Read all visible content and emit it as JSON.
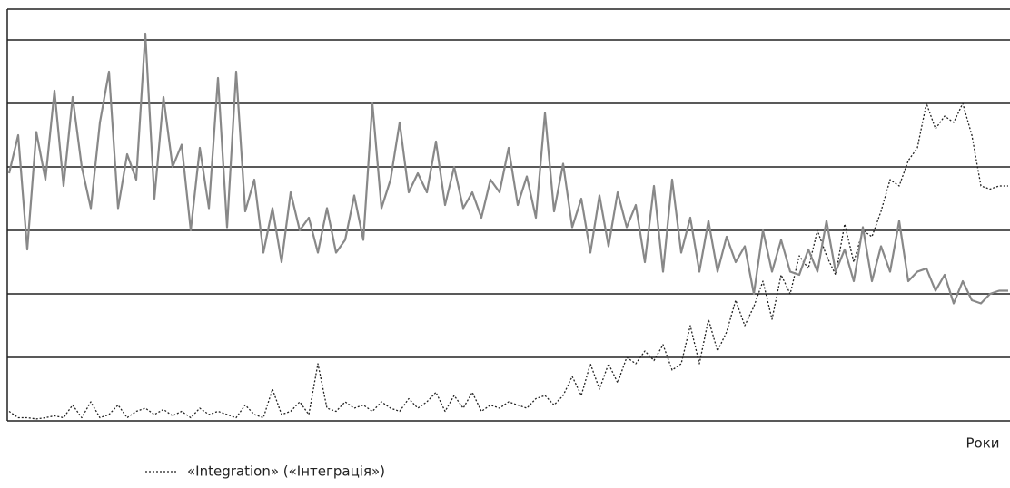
{
  "chart_data": {
    "type": "line",
    "x_label": "Роки",
    "ylim": [
      0,
      6.5
    ],
    "yticks": [
      0,
      1,
      2,
      3,
      4,
      5,
      6
    ],
    "grid": true,
    "series": [
      {
        "name": "«Integration» («Інтеграція»)",
        "color": "#222222",
        "style": "dotted",
        "values": [
          0.15,
          0.05,
          0.05,
          0.03,
          0.05,
          0.08,
          0.05,
          0.25,
          0.05,
          0.3,
          0.05,
          0.1,
          0.25,
          0.05,
          0.15,
          0.2,
          0.1,
          0.18,
          0.08,
          0.15,
          0.05,
          0.2,
          0.1,
          0.15,
          0.1,
          0.05,
          0.25,
          0.1,
          0.05,
          0.5,
          0.1,
          0.15,
          0.3,
          0.1,
          0.9,
          0.2,
          0.15,
          0.3,
          0.2,
          0.25,
          0.15,
          0.3,
          0.2,
          0.15,
          0.35,
          0.2,
          0.3,
          0.45,
          0.15,
          0.4,
          0.2,
          0.45,
          0.15,
          0.25,
          0.2,
          0.3,
          0.25,
          0.2,
          0.35,
          0.4,
          0.25,
          0.4,
          0.7,
          0.4,
          0.9,
          0.5,
          0.9,
          0.6,
          1.0,
          0.9,
          1.1,
          0.95,
          1.2,
          0.8,
          0.9,
          1.5,
          0.9,
          1.6,
          1.1,
          1.4,
          1.9,
          1.5,
          1.8,
          2.2,
          1.6,
          2.3,
          2.0,
          2.6,
          2.4,
          3.0,
          2.6,
          2.3,
          3.1,
          2.5,
          3.0,
          2.9,
          3.3,
          3.8,
          3.7,
          4.1,
          4.3,
          5.0,
          4.6,
          4.8,
          4.7,
          5.0,
          4.5,
          3.7,
          3.65,
          3.7,
          3.7
        ]
      },
      {
        "color": "#888888",
        "style": "solid",
        "values": [
          3.9,
          4.5,
          2.7,
          4.55,
          3.8,
          5.2,
          3.7,
          5.1,
          4.0,
          3.35,
          4.7,
          5.5,
          3.35,
          4.2,
          3.8,
          6.1,
          3.5,
          5.1,
          4.0,
          4.35,
          3.0,
          4.3,
          3.35,
          5.4,
          3.05,
          5.5,
          3.3,
          3.8,
          2.65,
          3.35,
          2.5,
          3.6,
          3.0,
          3.2,
          2.65,
          3.35,
          2.65,
          2.85,
          3.55,
          2.85,
          5.0,
          3.35,
          3.8,
          4.7,
          3.6,
          3.9,
          3.6,
          4.4,
          3.4,
          4.0,
          3.35,
          3.6,
          3.2,
          3.8,
          3.6,
          4.3,
          3.4,
          3.85,
          3.2,
          4.85,
          3.3,
          4.05,
          3.05,
          3.5,
          2.65,
          3.55,
          2.75,
          3.6,
          3.05,
          3.4,
          2.5,
          3.7,
          2.35,
          3.8,
          2.65,
          3.2,
          2.35,
          3.15,
          2.35,
          2.9,
          2.5,
          2.75,
          2.0,
          3.0,
          2.35,
          2.85,
          2.35,
          2.3,
          2.7,
          2.35,
          3.15,
          2.35,
          2.7,
          2.2,
          3.05,
          2.2,
          2.75,
          2.35,
          3.15,
          2.2,
          2.35,
          2.4,
          2.05,
          2.3,
          1.85,
          2.2,
          1.9,
          1.85,
          2.0,
          2.05,
          2.05
        ]
      }
    ]
  }
}
